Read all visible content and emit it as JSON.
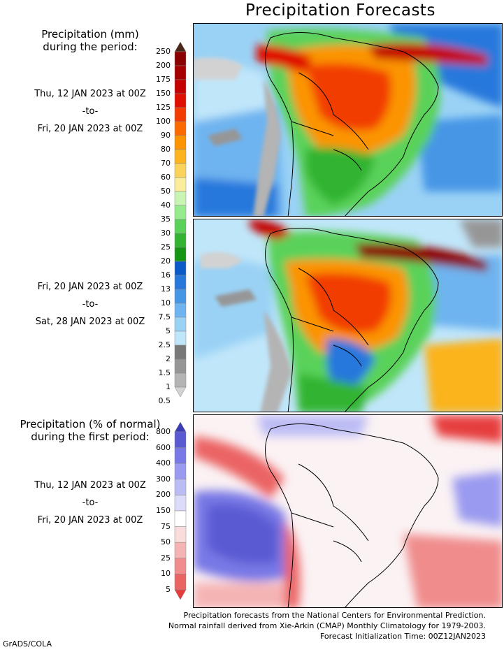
{
  "title": "Precipitation Forecasts",
  "mm_legend": {
    "title_line1": "Precipitation (mm)",
    "title_line2": "during the period:",
    "ticks": [
      "250",
      "200",
      "175",
      "150",
      "125",
      "100",
      "90",
      "80",
      "70",
      "60",
      "50",
      "40",
      "35",
      "30",
      "25",
      "20",
      "16",
      "13",
      "10",
      "7.5",
      "5",
      "2.5",
      "2",
      "1.5",
      "1",
      "0.5"
    ],
    "colors": [
      "#4a2716",
      "#8b0000",
      "#a50000",
      "#c40000",
      "#e01000",
      "#f23c00",
      "#fb6a00",
      "#fb9400",
      "#fbb41e",
      "#fbd25a",
      "#fbee9a",
      "#c8f5b4",
      "#96ec8c",
      "#5ad25a",
      "#32b432",
      "#149614",
      "#0a5ac8",
      "#2878dc",
      "#4696e6",
      "#6eb4f0",
      "#9ad2f5",
      "#c0e6fa",
      "#787878",
      "#969696",
      "#b4b4b4",
      "#d2d2d2"
    ]
  },
  "pct_legend": {
    "title_line1": "Precipitation (% of normal)",
    "title_line2": "during the first period:",
    "ticks": [
      "800",
      "600",
      "400",
      "300",
      "200",
      "150",
      "75",
      "50",
      "25",
      "10",
      "5"
    ],
    "colors": [
      "#3c3cb4",
      "#5a5ad2",
      "#7878e6",
      "#9a9af0",
      "#bcbcf5",
      "#dcdcfa",
      "#ffffff",
      "#fadcdc",
      "#f5b4b4",
      "#f08c8c",
      "#eb6464",
      "#e63c3c"
    ]
  },
  "periods": [
    {
      "start": "Thu, 12 JAN 2023 at 00Z",
      "sep": "-to-",
      "end": "Fri, 20 JAN 2023 at 00Z"
    },
    {
      "start": "Fri, 20 JAN 2023 at 00Z",
      "sep": "-to-",
      "end": "Sat, 28 JAN 2023 at 00Z"
    },
    {
      "start": "Thu, 12 JAN 2023 at 00Z",
      "sep": "-to-",
      "end": "Fri, 20 JAN 2023 at 00Z"
    }
  ],
  "footer": {
    "line1": "Precipitation forecasts from the National Centers for Environmental Prediction.",
    "line2": "Normal rainfall derived from Xie-Arkin (CMAP) Monthly Climatology for 1979-2003.",
    "line3": "Forecast Initialization Time: 00Z12JAN2023"
  },
  "credit": "GrADS/COLA"
}
